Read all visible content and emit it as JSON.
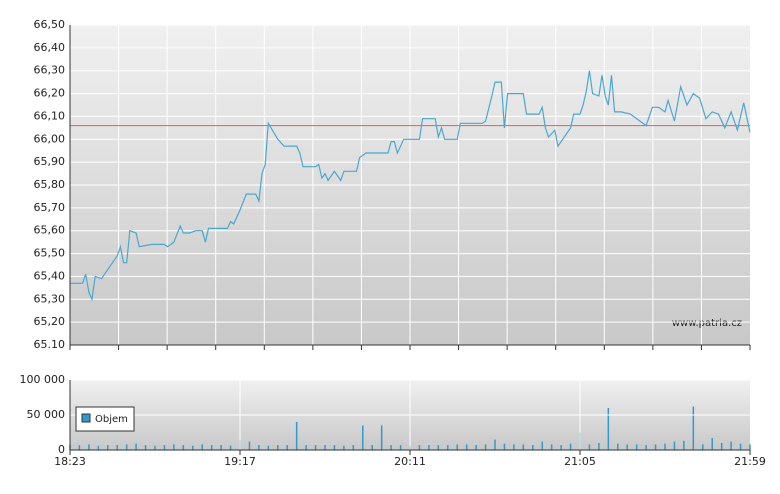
{
  "chart_data": [
    {
      "type": "line",
      "color": "#4aa8d0",
      "reference_line": 66.06,
      "reference_color": "#e06060",
      "watermark": "www.patria.cz",
      "xlim": [
        "18:23",
        "21:59"
      ],
      "ylim": [
        65.1,
        66.5
      ],
      "yticks": [
        {
          "value": 65.1,
          "label": "65.10"
        },
        {
          "value": 65.2,
          "label": "65,20"
        },
        {
          "value": 65.3,
          "label": "65,30"
        },
        {
          "value": 65.4,
          "label": "65,40"
        },
        {
          "value": 65.5,
          "label": "65,50"
        },
        {
          "value": 65.6,
          "label": "65,60"
        },
        {
          "value": 65.7,
          "label": "65,70"
        },
        {
          "value": 65.8,
          "label": "65,80"
        },
        {
          "value": 65.9,
          "label": "65,90"
        },
        {
          "value": 66.0,
          "label": "66,00"
        },
        {
          "value": 66.1,
          "label": "66,10"
        },
        {
          "value": 66.2,
          "label": "66,20"
        },
        {
          "value": 66.3,
          "label": "66,30"
        },
        {
          "value": 66.4,
          "label": "66,40"
        },
        {
          "value": 66.5,
          "label": "66,50"
        }
      ],
      "x": [
        "18:23",
        "18:27",
        "18:28",
        "18:29",
        "18:30",
        "18:31",
        "18:33",
        "18:36",
        "18:38",
        "18:39",
        "18:40",
        "18:41",
        "18:42",
        "18:44",
        "18:45",
        "18:49",
        "18:53",
        "18:54",
        "18:56",
        "18:58",
        "18:59",
        "19:01",
        "19:03",
        "19:05",
        "19:06",
        "19:07",
        "19:13",
        "19:14",
        "19:15",
        "19:17",
        "19:19",
        "19:22",
        "19:23",
        "19:24",
        "19:25",
        "19:26",
        "19:29",
        "19:31",
        "19:35",
        "19:36",
        "19:37",
        "19:41",
        "19:42",
        "19:43",
        "19:44",
        "19:45",
        "19:47",
        "19:49",
        "19:50",
        "19:54",
        "19:55",
        "19:57",
        "20:04",
        "20:05",
        "20:06",
        "20:07",
        "20:09",
        "20:14",
        "20:15",
        "20:19",
        "20:20",
        "20:21",
        "20:22",
        "20:26",
        "20:27",
        "20:34",
        "20:35",
        "20:37",
        "20:38",
        "20:40",
        "20:41",
        "20:42",
        "20:47",
        "20:48",
        "20:52",
        "20:53",
        "20:54",
        "20:55",
        "20:57",
        "20:58",
        "21:00",
        "21:02",
        "21:03",
        "21:05",
        "21:06",
        "21:07",
        "21:08",
        "21:09",
        "21:11",
        "21:12",
        "21:13",
        "21:14",
        "21:15",
        "21:16",
        "21:18",
        "21:21",
        "21:24",
        "21:26",
        "21:28",
        "21:30",
        "21:32",
        "21:33",
        "21:35",
        "21:37",
        "21:39",
        "21:41",
        "21:43",
        "21:45",
        "21:47",
        "21:49",
        "21:51",
        "21:53",
        "21:55",
        "21:57",
        "21:59"
      ],
      "values": [
        65.37,
        65.37,
        65.41,
        65.33,
        65.3,
        65.4,
        65.39,
        65.45,
        65.49,
        65.53,
        65.46,
        65.46,
        65.6,
        65.59,
        65.53,
        65.54,
        65.54,
        65.53,
        65.55,
        65.62,
        65.59,
        65.59,
        65.6,
        65.6,
        65.55,
        65.61,
        65.61,
        65.64,
        65.63,
        65.69,
        65.76,
        65.76,
        65.73,
        65.85,
        65.89,
        66.07,
        66.0,
        65.97,
        65.97,
        65.94,
        65.88,
        65.88,
        65.89,
        65.83,
        65.85,
        65.82,
        65.86,
        65.82,
        65.86,
        65.86,
        65.92,
        65.94,
        65.94,
        65.99,
        65.99,
        65.94,
        66.0,
        66.0,
        66.09,
        66.09,
        66.01,
        66.05,
        66.0,
        66.0,
        66.07,
        66.07,
        66.08,
        66.19,
        66.25,
        66.25,
        66.05,
        66.2,
        66.2,
        66.11,
        66.11,
        66.14,
        66.05,
        66.01,
        66.04,
        65.97,
        66.01,
        66.05,
        66.11,
        66.11,
        66.15,
        66.21,
        66.3,
        66.2,
        66.19,
        66.28,
        66.19,
        66.15,
        66.28,
        66.12,
        66.12,
        66.11,
        66.08,
        66.06,
        66.14,
        66.14,
        66.12,
        66.17,
        66.08,
        66.23,
        66.15,
        66.2,
        66.18,
        66.09,
        66.12,
        66.11,
        66.05,
        66.12,
        66.04,
        66.16,
        66.03
      ]
    },
    {
      "type": "bar",
      "color": "#3399cc",
      "legend": "Objem",
      "xlim": [
        "18:23",
        "21:59"
      ],
      "xticks": [
        "18:23",
        "19:17",
        "20:11",
        "21:05",
        "21:59"
      ],
      "ylim": [
        0,
        100000
      ],
      "yticks": [
        0,
        {
          "value": 50000,
          "label": "50 000"
        },
        {
          "value": 100000,
          "label": "100 000"
        }
      ],
      "x": [
        "18:23",
        "18:26",
        "18:29",
        "18:32",
        "18:35",
        "18:38",
        "18:41",
        "18:44",
        "18:47",
        "18:50",
        "18:53",
        "18:56",
        "18:59",
        "19:02",
        "19:05",
        "19:08",
        "19:11",
        "19:14",
        "19:17",
        "19:20",
        "19:23",
        "19:26",
        "19:29",
        "19:32",
        "19:35",
        "19:38",
        "19:41",
        "19:44",
        "19:47",
        "19:50",
        "19:53",
        "19:56",
        "19:59",
        "20:02",
        "20:05",
        "20:08",
        "20:11",
        "20:14",
        "20:17",
        "20:20",
        "20:23",
        "20:26",
        "20:29",
        "20:32",
        "20:35",
        "20:38",
        "20:41",
        "20:44",
        "20:47",
        "20:50",
        "20:53",
        "20:56",
        "20:59",
        "21:02",
        "21:05",
        "21:08",
        "21:11",
        "21:14",
        "21:17",
        "21:20",
        "21:23",
        "21:26",
        "21:29",
        "21:32",
        "21:35",
        "21:38",
        "21:41",
        "21:44",
        "21:47",
        "21:50",
        "21:53",
        "21:56",
        "21:59"
      ],
      "values": [
        7000,
        7000,
        8000,
        6000,
        7000,
        7000,
        8000,
        9000,
        7000,
        6000,
        7000,
        8000,
        7000,
        6000,
        8000,
        7000,
        7000,
        6000,
        14000,
        12000,
        7000,
        6000,
        7000,
        7000,
        40000,
        7000,
        7000,
        7000,
        7000,
        6000,
        7000,
        35000,
        7000,
        35000,
        7000,
        7000,
        6000,
        7000,
        7000,
        7000,
        7000,
        8000,
        8000,
        7000,
        8000,
        15000,
        9000,
        8000,
        8000,
        7000,
        12000,
        8000,
        7000,
        9000,
        25000,
        8000,
        10000,
        60000,
        9000,
        8000,
        8000,
        7000,
        8000,
        9000,
        12000,
        13000,
        62000,
        8000,
        17000,
        10000,
        12000,
        9000,
        8000
      ]
    }
  ]
}
